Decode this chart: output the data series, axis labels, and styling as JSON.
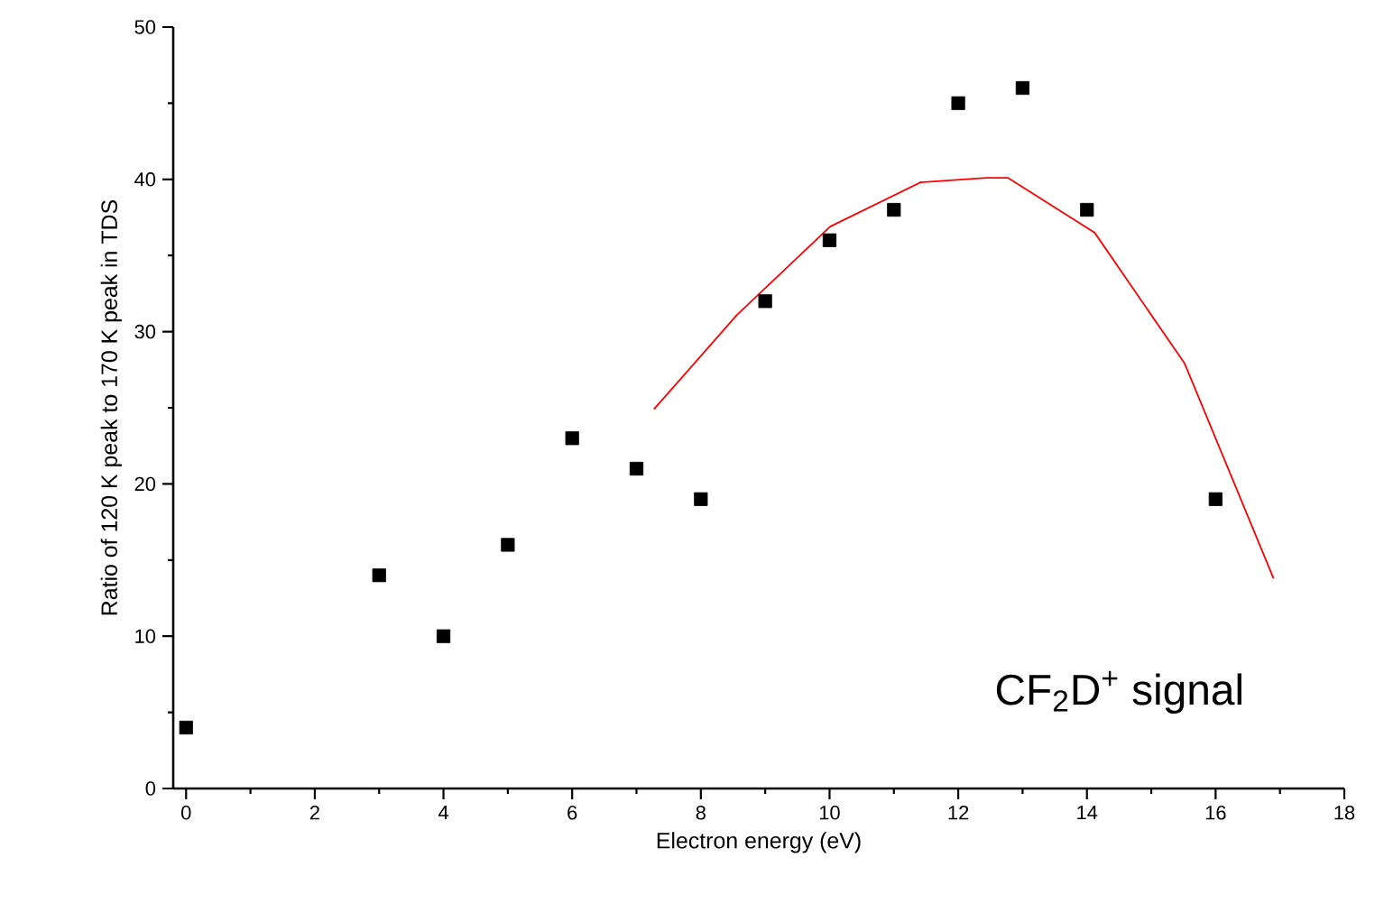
{
  "chart_data": {
    "type": "scatter",
    "xlabel": "Electron energy (eV)",
    "ylabel": "Ratio of 120 K peak to 170 K peak in TDS",
    "annotations": [
      "CF$_{2}$D$^{+}$ signal"
    ],
    "xlim": [
      -0.2,
      18
    ],
    "ylim": [
      0,
      50
    ],
    "xticks": [
      0,
      2,
      4,
      6,
      8,
      10,
      12,
      14,
      16,
      18
    ],
    "yticks": [
      0,
      10,
      20,
      30,
      40,
      50
    ],
    "grid": false,
    "series": [
      {
        "color": "#000000",
        "marker": "square",
        "x": [
          0,
          3,
          4,
          5,
          6,
          7,
          8,
          9,
          10,
          11,
          12,
          13,
          14,
          16
        ],
        "values": [
          4,
          14,
          10,
          16,
          23,
          21,
          19,
          32,
          36,
          38,
          45,
          46,
          38,
          19
        ]
      },
      {
        "type": "line",
        "color": "#ff0000",
        "marker": "none",
        "line_style": "solid",
        "x": [
          7.27,
          8.56,
          10.01,
          11.41,
          12.44,
          12.77,
          14.12,
          15.52,
          16.9
        ],
        "values": [
          24.9,
          31.1,
          36.9,
          39.8,
          40.1,
          40.1,
          36.5,
          27.9,
          13.8
        ]
      }
    ]
  }
}
